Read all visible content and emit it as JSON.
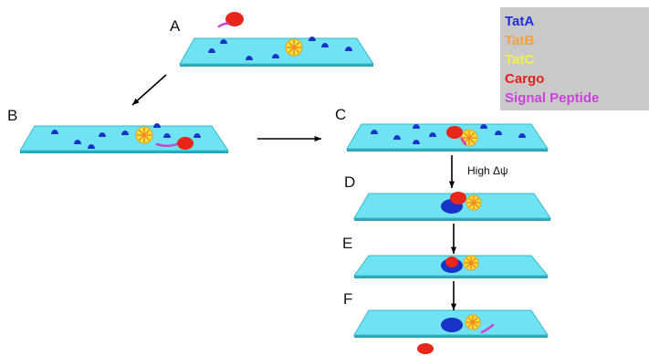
{
  "panels": [
    {
      "label": "A"
    },
    {
      "label": "B"
    },
    {
      "label": "C"
    },
    {
      "label": "D"
    },
    {
      "label": "E"
    },
    {
      "label": "F"
    }
  ],
  "annotation": "High Δψ",
  "legend": [
    {
      "label": "TatA"
    },
    {
      "label": "TatB"
    },
    {
      "label": "TatC"
    },
    {
      "label": "Cargo"
    },
    {
      "label": "Signal Peptide"
    }
  ]
}
